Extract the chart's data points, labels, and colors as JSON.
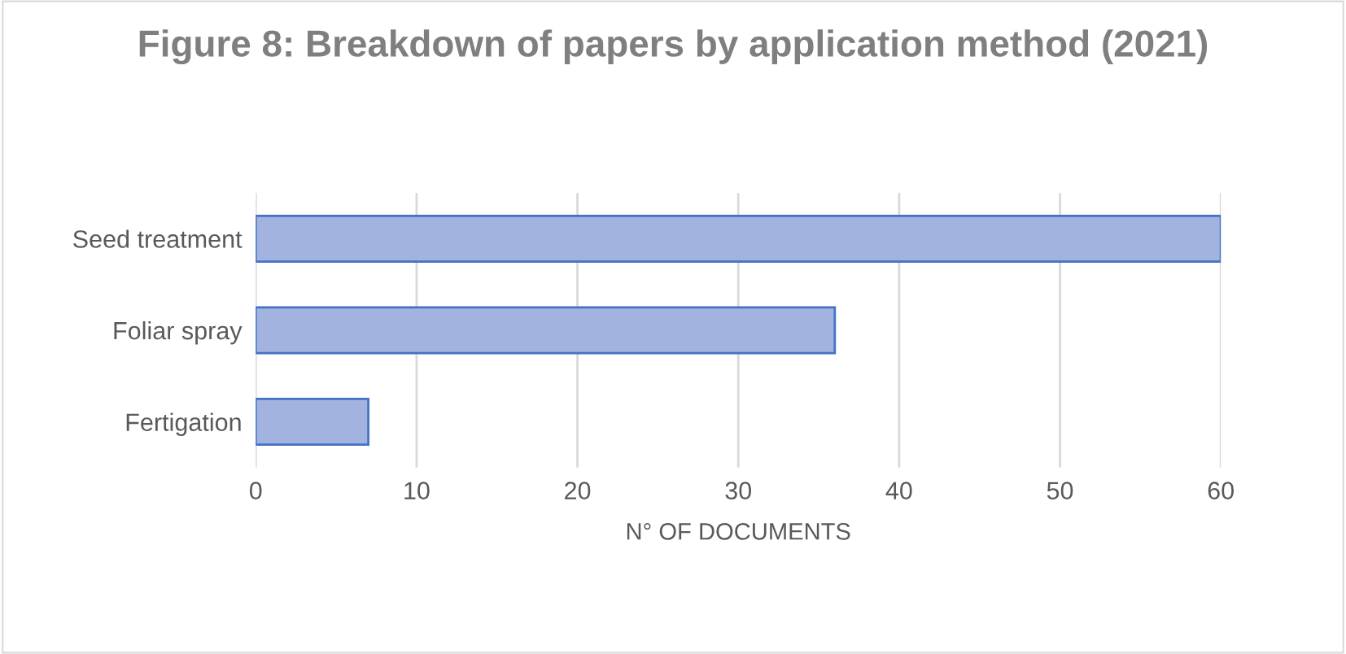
{
  "chart_data": {
    "type": "bar",
    "orientation": "horizontal",
    "title": "Figure 8: Breakdown of papers by application method (2021)",
    "xlabel": "N° OF DOCUMENTS",
    "categories": [
      "Seed treatment",
      "Foliar spray",
      "Fertigation"
    ],
    "values": [
      60,
      36,
      7
    ],
    "color": "#a2b3e0",
    "xlim": [
      0,
      60
    ],
    "xticks": [
      0,
      10,
      20,
      30,
      40,
      50,
      60
    ],
    "grid": "x"
  }
}
